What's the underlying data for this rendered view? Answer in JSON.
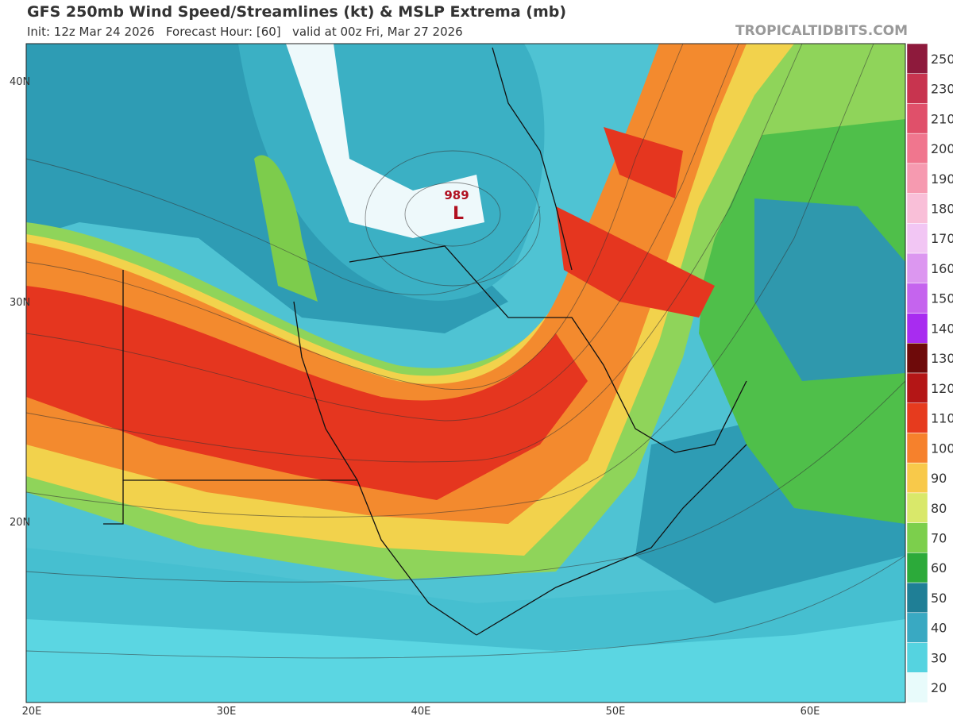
{
  "header": {
    "title": "GFS 250mb Wind Speed/Streamlines (kt) & MSLP Extrema (mb)",
    "subtitle": "Init: 12z Mar 24 2026   Forecast Hour: [60]   valid at 00z Fri, Mar 27 2026",
    "credit": "TROPICALTIDBITS.COM"
  },
  "map": {
    "lat_labels": [
      "40N",
      "30N",
      "20N"
    ],
    "lon_labels": [
      "20E",
      "30E",
      "40E",
      "50E",
      "60E"
    ],
    "lows": [
      {
        "pressure": 989,
        "symbol": "L"
      }
    ]
  },
  "colorbar": {
    "labels": [
      250,
      230,
      210,
      200,
      190,
      180,
      170,
      160,
      150,
      140,
      130,
      120,
      110,
      100,
      90,
      80,
      70,
      60,
      50,
      40,
      30,
      20
    ],
    "colors": [
      "#8e1a3c",
      "#c8344f",
      "#e0506a",
      "#f0768e",
      "#f69ab0",
      "#f9bfd8",
      "#f2c6f4",
      "#dc97f0",
      "#c564ee",
      "#a82cf0",
      "#6e0a0a",
      "#b41616",
      "#e63b1e",
      "#f6812c",
      "#f8c94a",
      "#d9e86a",
      "#7ccf4c",
      "#2caa3a",
      "#1f7f96",
      "#39a9c2",
      "#55d3e0",
      "#e8fbfb"
    ]
  }
}
